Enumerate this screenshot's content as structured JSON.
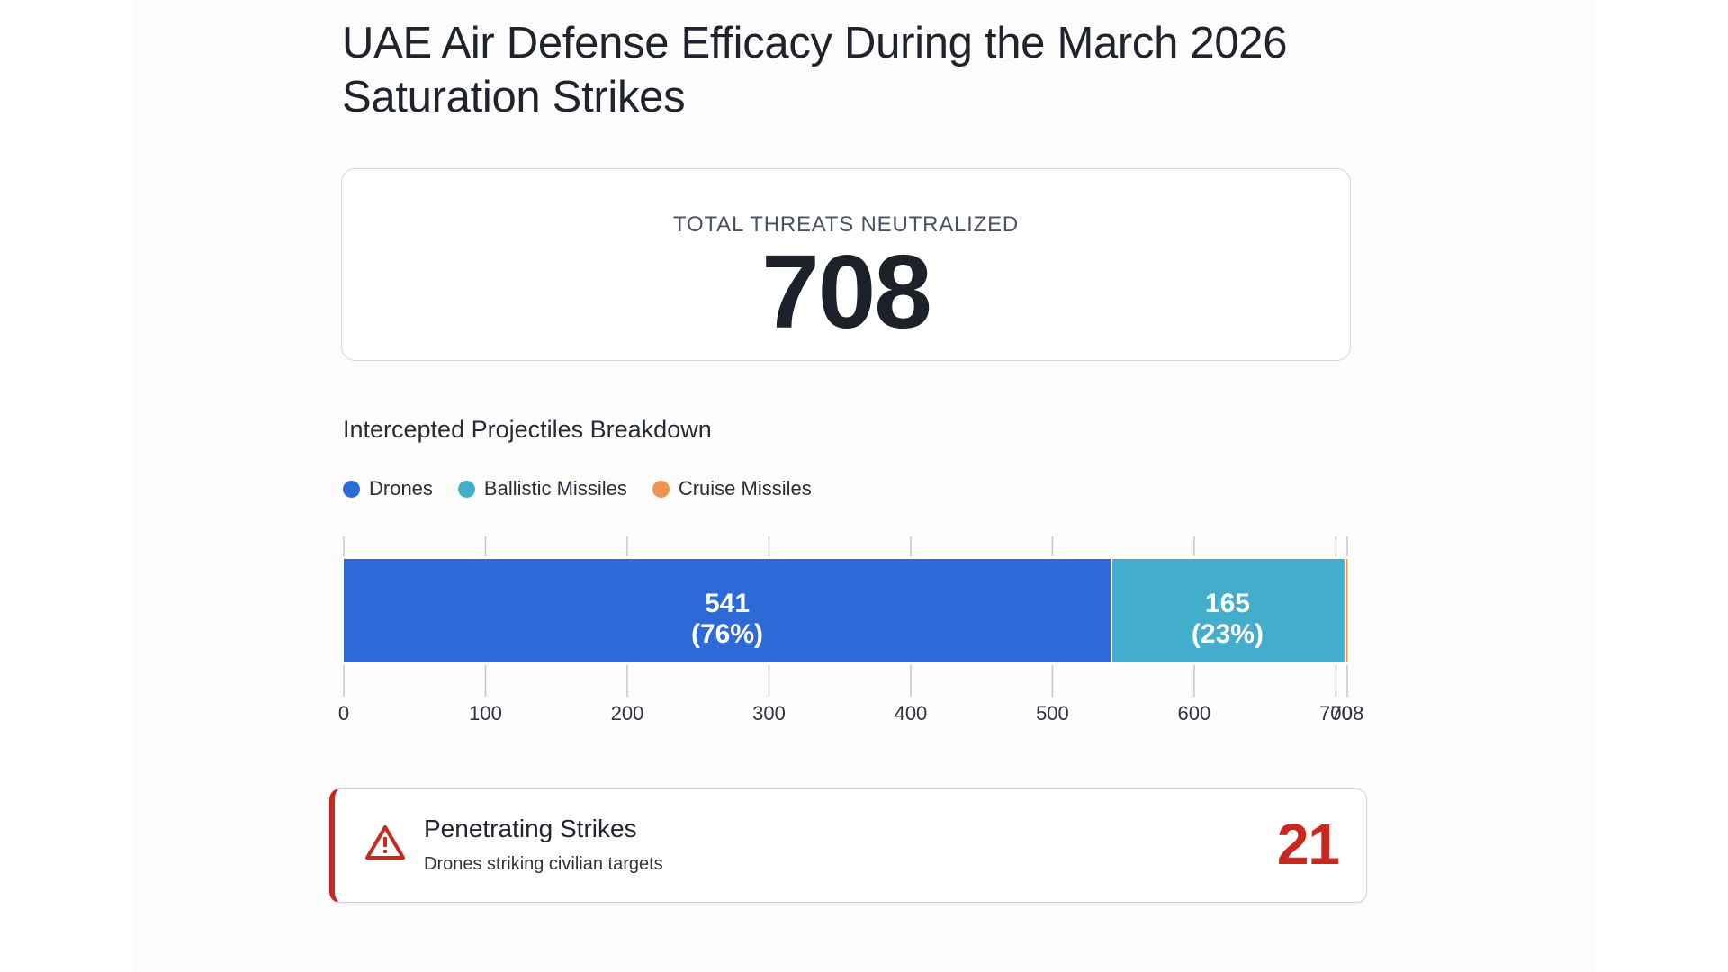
{
  "page": {
    "title": "UAE Air Defense Efficacy During the March 2026 Saturation Strikes"
  },
  "total_card": {
    "label": "TOTAL THREATS NEUTRALIZED",
    "value": "708"
  },
  "breakdown": {
    "title": "Intercepted Projectiles Breakdown"
  },
  "legend": [
    {
      "label": "Drones",
      "color": "#2d6ad8"
    },
    {
      "label": "Ballistic Missiles",
      "color": "#43aecb"
    },
    {
      "label": "Cruise Missiles",
      "color": "#ef9450"
    }
  ],
  "alert": {
    "icon": "warning-triangle-icon",
    "title": "Penetrating Strikes",
    "subtitle": "Drones striking civilian targets",
    "value": "21",
    "color": "#c9281f"
  },
  "chart_data": {
    "type": "bar",
    "orientation": "horizontal-stacked",
    "title": "Intercepted Projectiles Breakdown",
    "xlabel": "",
    "ylabel": "",
    "xlim": [
      0,
      708
    ],
    "x_ticks": [
      0,
      100,
      200,
      300,
      400,
      500,
      600,
      700,
      708
    ],
    "grid": false,
    "legend_position": "top-left",
    "total": 708,
    "series": [
      {
        "name": "Drones",
        "value": 541,
        "percent_label": "76%",
        "color": "#2d6ad8",
        "label": "541",
        "sublabel": "(76%)"
      },
      {
        "name": "Ballistic Missiles",
        "value": 165,
        "percent_label": "23%",
        "color": "#43aecb",
        "label": "165",
        "sublabel": "(23%)"
      },
      {
        "name": "Cruise Missiles",
        "value": 2,
        "percent_label": "",
        "color": "#ef9450",
        "label": "",
        "sublabel": ""
      }
    ]
  }
}
